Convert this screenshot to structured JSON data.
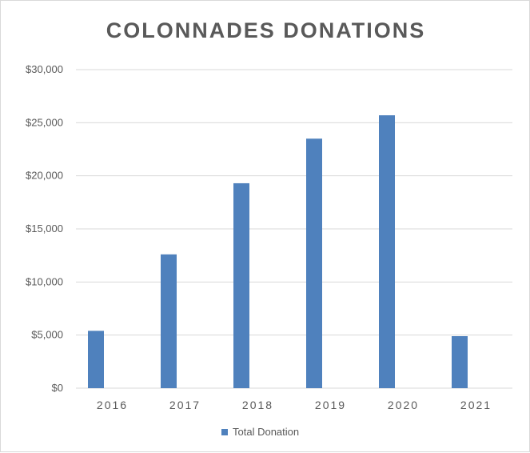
{
  "chart_data": {
    "type": "bar",
    "title": "COLONNADES DONATIONS",
    "categories": [
      "2016",
      "2017",
      "2018",
      "2019",
      "2020",
      "2021"
    ],
    "series": [
      {
        "name": "Total Donation",
        "values": [
          5400,
          12600,
          19300,
          23500,
          25700,
          4900
        ]
      }
    ],
    "y_tick_labels": [
      "$0",
      "$5,000",
      "$10,000",
      "$15,000",
      "$20,000",
      "$25,000",
      "$30,000"
    ],
    "ylim": [
      0,
      30000
    ],
    "grid": true,
    "legend_position": "bottom",
    "bar_color": "#4f81bd",
    "grid_color": "#d9d9d9"
  }
}
